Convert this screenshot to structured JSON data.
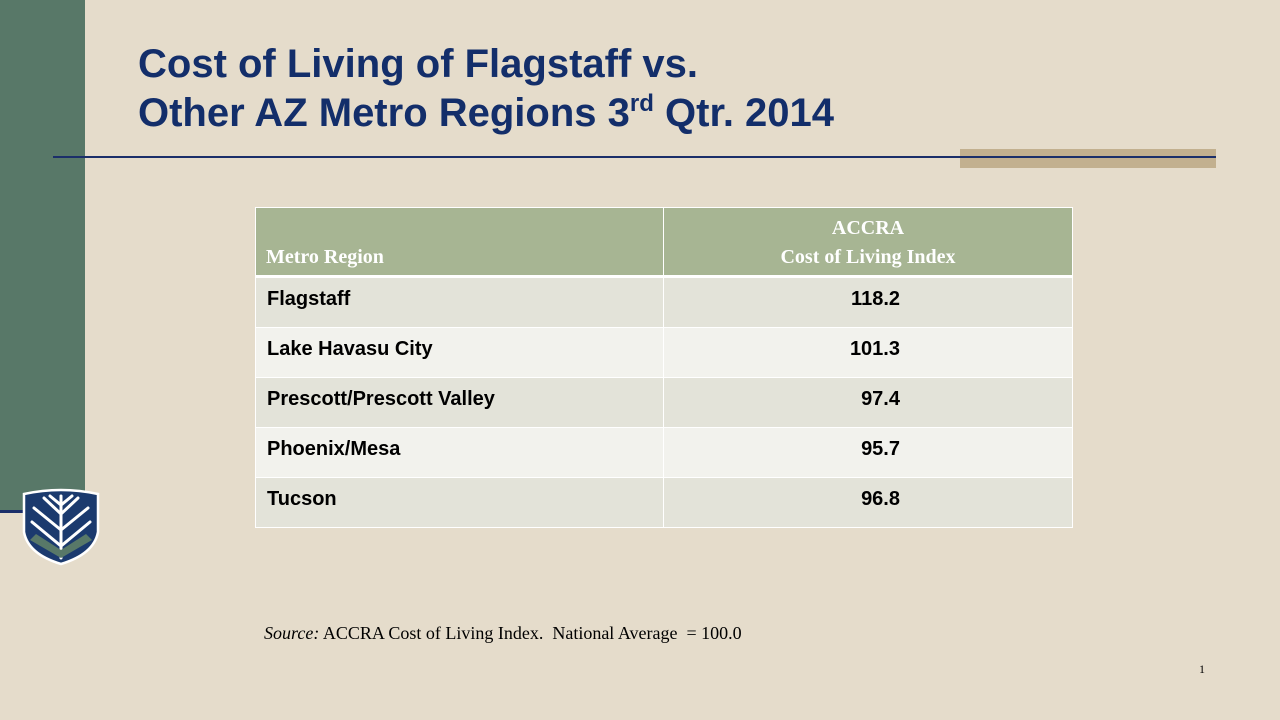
{
  "slide": {
    "title_line1": "Cost of Living of Flagstaff vs.",
    "title_line2_pre": "Other AZ Metro Regions 3",
    "title_sup": "rd",
    "title_line2_post": " Qtr. 2014",
    "page_number": "1"
  },
  "table": {
    "headers": {
      "region": "Metro Region",
      "index_line1": "ACCRA",
      "index_line2": "Cost of Living Index"
    },
    "rows": [
      {
        "region": "Flagstaff",
        "value": "118.2"
      },
      {
        "region": "Lake Havasu City",
        "value": "101.3"
      },
      {
        "region": "Prescott/Prescott Valley",
        "value": "97.4"
      },
      {
        "region": "Phoenix/Mesa",
        "value": "95.7"
      },
      {
        "region": "Tucson",
        "value": "96.8"
      }
    ]
  },
  "source": {
    "label": "Source:",
    "text": " ACCRA Cost of Living Index.  National Average  = 100.0"
  },
  "colors": {
    "background": "#e5dccb",
    "sidebar": "#587868",
    "title": "#132e6a",
    "header_fill": "#a7b593",
    "accent_tan": "#c2b08f"
  },
  "logo": {
    "icon": "university-shield-logo"
  }
}
